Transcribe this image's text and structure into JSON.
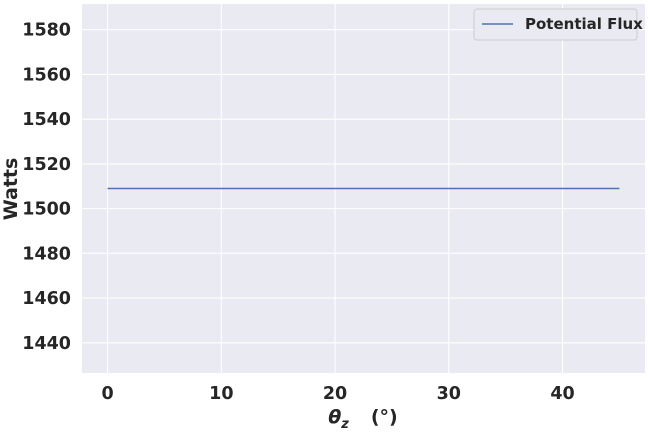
{
  "chart_data": {
    "type": "line",
    "title": "",
    "xlabel": "θ_z (°)",
    "xlabel_main": "θ",
    "xlabel_sub": "z",
    "xlabel_unit": "(°)",
    "ylabel": "Watts",
    "xlim": [
      -2.25,
      47.25
    ],
    "ylim": [
      1426.5,
      1591.5
    ],
    "xticks": [
      0,
      10,
      20,
      30,
      40
    ],
    "yticks": [
      1440,
      1460,
      1480,
      1500,
      1520,
      1540,
      1560,
      1580
    ],
    "grid": true,
    "legend_position": "top-right",
    "series": [
      {
        "name": "Potential Flux",
        "color": "#4c72b0",
        "x": [
          0,
          45
        ],
        "y": [
          1509,
          1509
        ]
      }
    ]
  }
}
